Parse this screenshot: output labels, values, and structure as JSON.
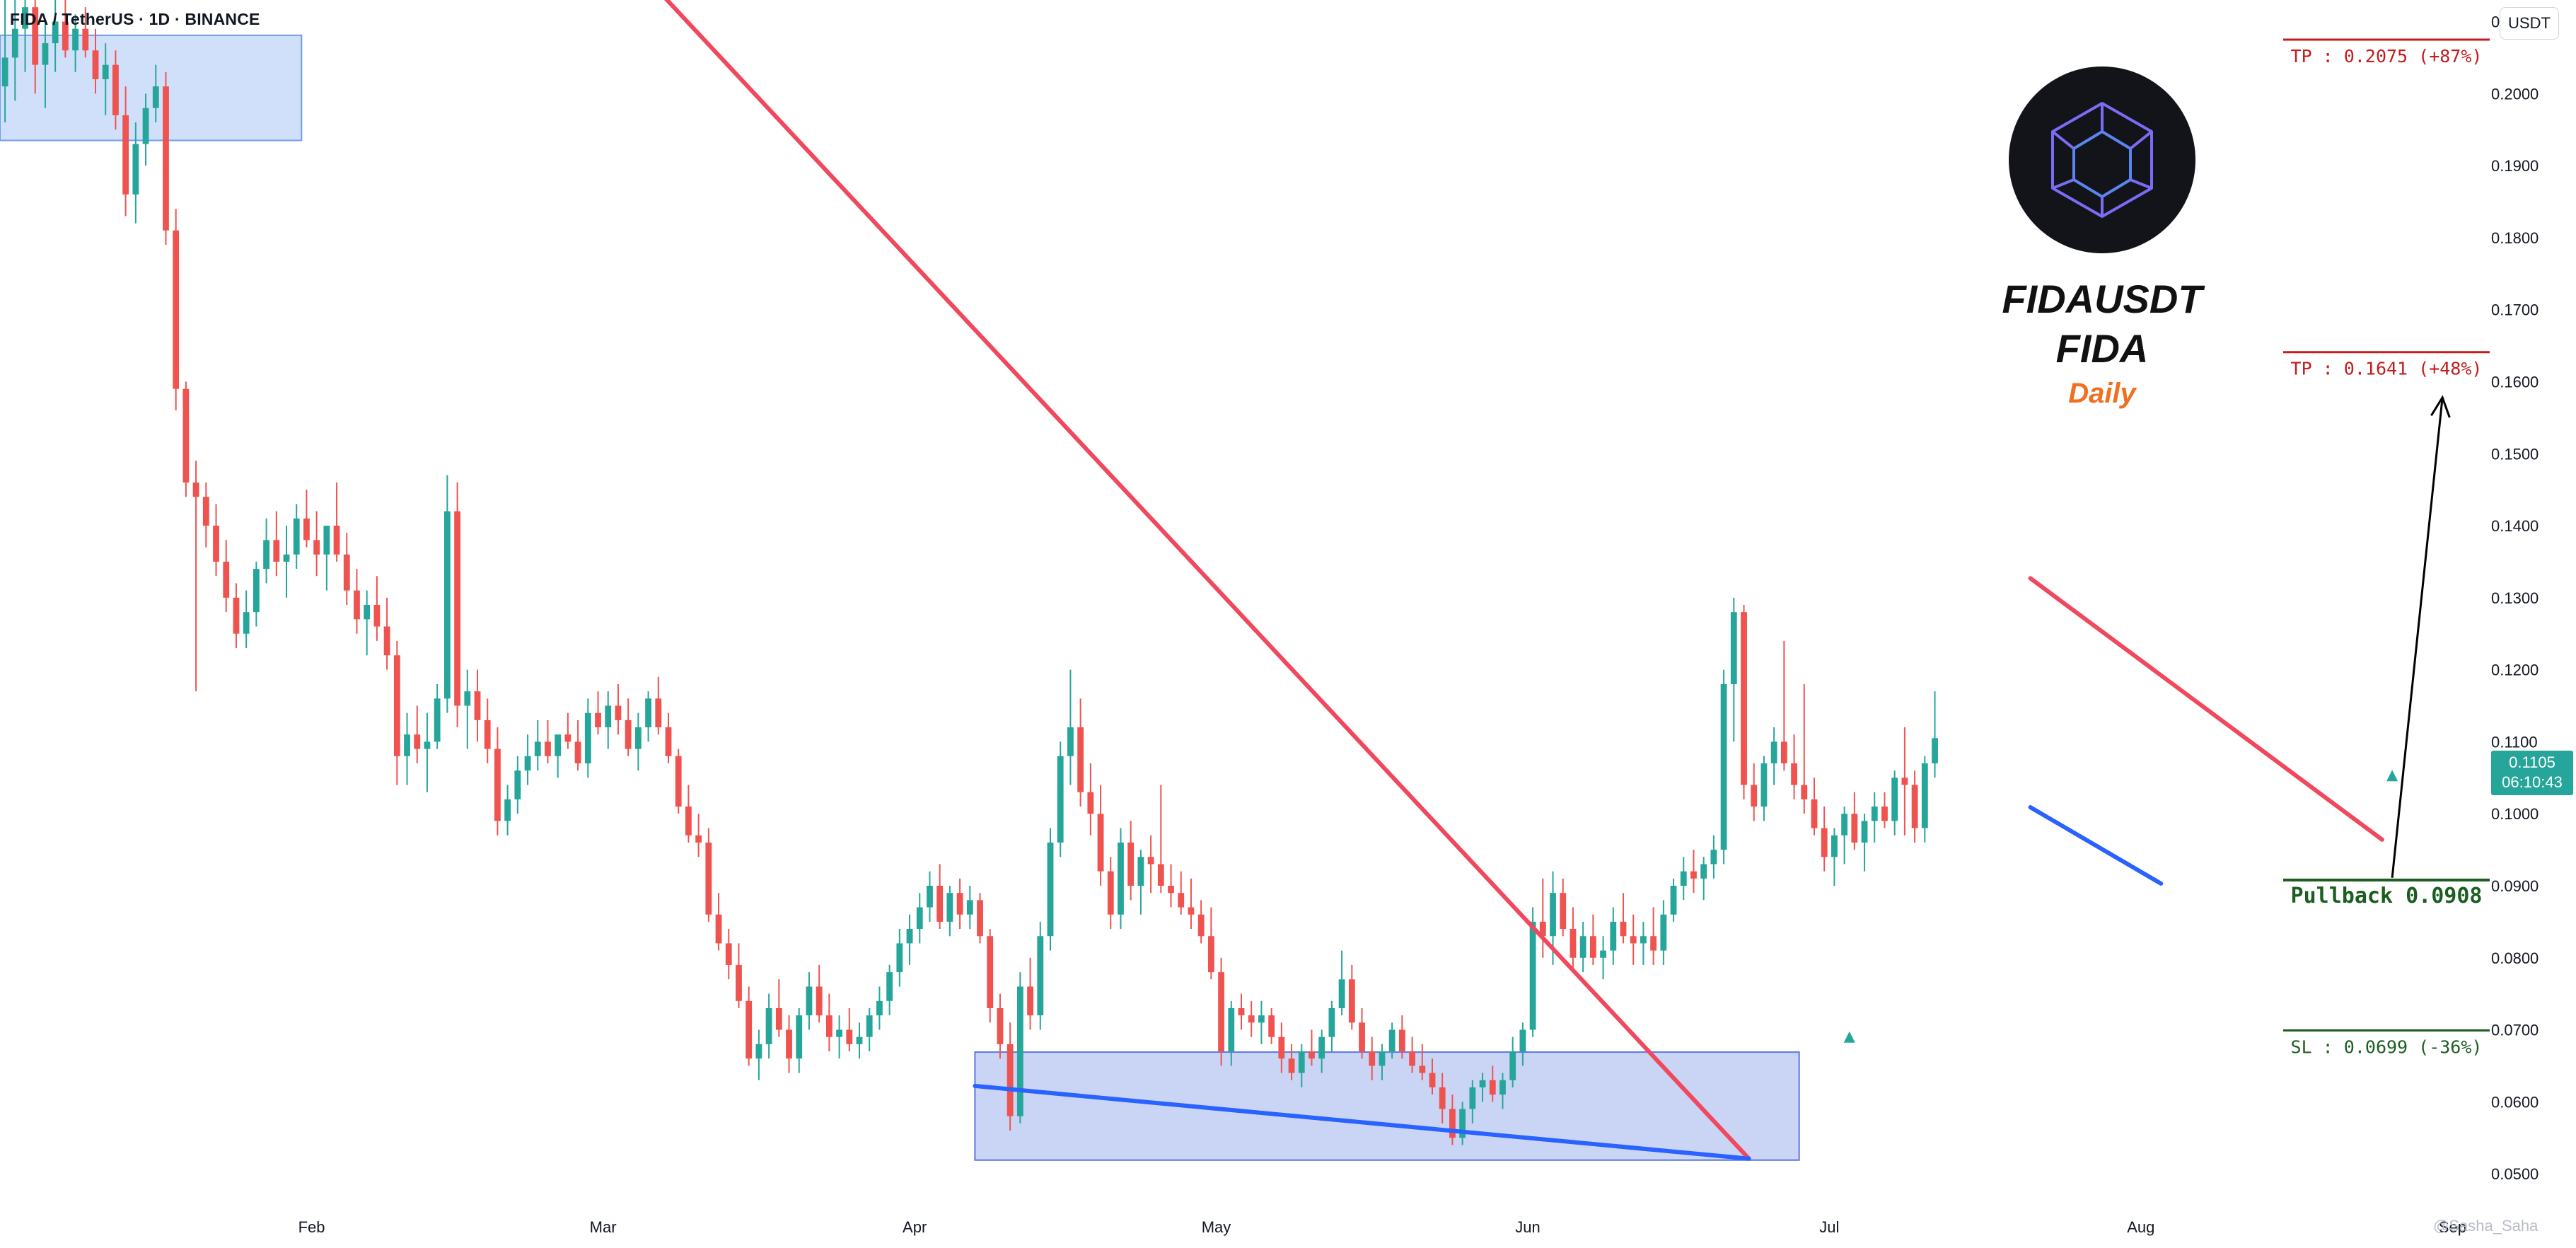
{
  "header": {
    "symbol_label": "FIDA / TetherUS · 1D · BINANCE",
    "currency": "USDT"
  },
  "overlay": {
    "title_lines": [
      "FIDAUSDT",
      "FIDA"
    ],
    "timeframe": "Daily",
    "timeframe_color": "#f07020",
    "logo_icon": "fida-cube-icon"
  },
  "price_tag": {
    "price": "0.1105",
    "countdown": "06:10:43"
  },
  "watermark": "@Sasha_Saha",
  "chart_data": {
    "type": "candlestick",
    "xlim": [
      "2024-01-01",
      "2024-09-04"
    ],
    "ylim": [
      0.045,
      0.213
    ],
    "x_ticks": [
      {
        "label": "Feb",
        "date": "2024-02-01"
      },
      {
        "label": "Mar",
        "date": "2024-03-01"
      },
      {
        "label": "Apr",
        "date": "2024-04-01"
      },
      {
        "label": "May",
        "date": "2024-05-01"
      },
      {
        "label": "Jun",
        "date": "2024-06-01"
      },
      {
        "label": "Jul",
        "date": "2024-07-01"
      },
      {
        "label": "Aug",
        "date": "2024-08-01"
      },
      {
        "label": "Sep",
        "date": "2024-09-01"
      }
    ],
    "y_ticks": [
      "0.0500",
      "0.0600",
      "0.0700",
      "0.0800",
      "0.0900",
      "0.1000",
      "0.1100",
      "0.1200",
      "0.1300",
      "0.1400",
      "0.1500",
      "0.1600",
      "0.1700",
      "0.1800",
      "0.1900",
      "0.2000",
      "0.2100"
    ],
    "up_color": "#26a69a",
    "down_color": "#ef5350",
    "candles_ohlc": [
      [
        0.201,
        0.213,
        0.196,
        0.205
      ],
      [
        0.205,
        0.214,
        0.199,
        0.209
      ],
      [
        0.209,
        0.216,
        0.203,
        0.212
      ],
      [
        0.212,
        0.215,
        0.2,
        0.204
      ],
      [
        0.204,
        0.21,
        0.198,
        0.207
      ],
      [
        0.207,
        0.213,
        0.203,
        0.21
      ],
      [
        0.21,
        0.214,
        0.205,
        0.206
      ],
      [
        0.206,
        0.211,
        0.203,
        0.209
      ],
      [
        0.209,
        0.212,
        0.205,
        0.206
      ],
      [
        0.206,
        0.209,
        0.2,
        0.202
      ],
      [
        0.202,
        0.207,
        0.197,
        0.204
      ],
      [
        0.204,
        0.206,
        0.195,
        0.197
      ],
      [
        0.197,
        0.201,
        0.183,
        0.186
      ],
      [
        0.186,
        0.196,
        0.182,
        0.193
      ],
      [
        0.193,
        0.2,
        0.19,
        0.198
      ],
      [
        0.198,
        0.204,
        0.196,
        0.201
      ],
      [
        0.201,
        0.203,
        0.179,
        0.181
      ],
      [
        0.181,
        0.184,
        0.156,
        0.159
      ],
      [
        0.159,
        0.16,
        0.144,
        0.146
      ],
      [
        0.146,
        0.149,
        0.117,
        0.144
      ],
      [
        0.144,
        0.146,
        0.137,
        0.14
      ],
      [
        0.14,
        0.143,
        0.133,
        0.135
      ],
      [
        0.135,
        0.138,
        0.128,
        0.13
      ],
      [
        0.13,
        0.132,
        0.123,
        0.125
      ],
      [
        0.125,
        0.131,
        0.123,
        0.128
      ],
      [
        0.128,
        0.135,
        0.126,
        0.134
      ],
      [
        0.134,
        0.141,
        0.132,
        0.138
      ],
      [
        0.138,
        0.142,
        0.133,
        0.135
      ],
      [
        0.135,
        0.14,
        0.13,
        0.136
      ],
      [
        0.136,
        0.143,
        0.134,
        0.141
      ],
      [
        0.141,
        0.145,
        0.137,
        0.138
      ],
      [
        0.138,
        0.142,
        0.133,
        0.136
      ],
      [
        0.136,
        0.14,
        0.131,
        0.14
      ],
      [
        0.14,
        0.146,
        0.135,
        0.136
      ],
      [
        0.136,
        0.139,
        0.129,
        0.131
      ],
      [
        0.131,
        0.134,
        0.125,
        0.127
      ],
      [
        0.127,
        0.131,
        0.122,
        0.129
      ],
      [
        0.129,
        0.133,
        0.124,
        0.126
      ],
      [
        0.126,
        0.13,
        0.12,
        0.122
      ],
      [
        0.122,
        0.124,
        0.104,
        0.108
      ],
      [
        0.108,
        0.114,
        0.104,
        0.111
      ],
      [
        0.111,
        0.115,
        0.107,
        0.109
      ],
      [
        0.109,
        0.114,
        0.103,
        0.11
      ],
      [
        0.11,
        0.118,
        0.109,
        0.116
      ],
      [
        0.116,
        0.147,
        0.114,
        0.142
      ],
      [
        0.142,
        0.146,
        0.112,
        0.115
      ],
      [
        0.115,
        0.12,
        0.109,
        0.117
      ],
      [
        0.117,
        0.12,
        0.11,
        0.113
      ],
      [
        0.113,
        0.116,
        0.107,
        0.109
      ],
      [
        0.109,
        0.112,
        0.097,
        0.099
      ],
      [
        0.099,
        0.104,
        0.097,
        0.102
      ],
      [
        0.102,
        0.108,
        0.1,
        0.106
      ],
      [
        0.106,
        0.111,
        0.104,
        0.108
      ],
      [
        0.108,
        0.113,
        0.106,
        0.11
      ],
      [
        0.11,
        0.113,
        0.107,
        0.108
      ],
      [
        0.108,
        0.111,
        0.105,
        0.111
      ],
      [
        0.111,
        0.114,
        0.109,
        0.11
      ],
      [
        0.11,
        0.113,
        0.106,
        0.107
      ],
      [
        0.107,
        0.116,
        0.105,
        0.114
      ],
      [
        0.114,
        0.117,
        0.111,
        0.112
      ],
      [
        0.112,
        0.117,
        0.109,
        0.115
      ],
      [
        0.115,
        0.118,
        0.111,
        0.113
      ],
      [
        0.113,
        0.116,
        0.108,
        0.109
      ],
      [
        0.109,
        0.114,
        0.106,
        0.112
      ],
      [
        0.112,
        0.117,
        0.11,
        0.116
      ],
      [
        0.116,
        0.119,
        0.111,
        0.112
      ],
      [
        0.112,
        0.114,
        0.107,
        0.108
      ],
      [
        0.108,
        0.109,
        0.1,
        0.101
      ],
      [
        0.101,
        0.104,
        0.096,
        0.097
      ],
      [
        0.097,
        0.1,
        0.094,
        0.096
      ],
      [
        0.096,
        0.098,
        0.085,
        0.086
      ],
      [
        0.086,
        0.089,
        0.081,
        0.082
      ],
      [
        0.082,
        0.084,
        0.077,
        0.079
      ],
      [
        0.079,
        0.082,
        0.073,
        0.074
      ],
      [
        0.074,
        0.076,
        0.065,
        0.066
      ],
      [
        0.066,
        0.07,
        0.063,
        0.068
      ],
      [
        0.068,
        0.075,
        0.066,
        0.073
      ],
      [
        0.073,
        0.077,
        0.069,
        0.07
      ],
      [
        0.07,
        0.072,
        0.064,
        0.066
      ],
      [
        0.066,
        0.073,
        0.064,
        0.072
      ],
      [
        0.072,
        0.078,
        0.07,
        0.076
      ],
      [
        0.076,
        0.079,
        0.071,
        0.072
      ],
      [
        0.072,
        0.075,
        0.067,
        0.069
      ],
      [
        0.069,
        0.072,
        0.066,
        0.07
      ],
      [
        0.07,
        0.073,
        0.067,
        0.068
      ],
      [
        0.068,
        0.071,
        0.066,
        0.069
      ],
      [
        0.069,
        0.073,
        0.067,
        0.072
      ],
      [
        0.072,
        0.076,
        0.07,
        0.074
      ],
      [
        0.074,
        0.079,
        0.072,
        0.078
      ],
      [
        0.078,
        0.084,
        0.076,
        0.082
      ],
      [
        0.082,
        0.086,
        0.079,
        0.084
      ],
      [
        0.084,
        0.089,
        0.082,
        0.087
      ],
      [
        0.087,
        0.092,
        0.085,
        0.09
      ],
      [
        0.09,
        0.093,
        0.084,
        0.085
      ],
      [
        0.085,
        0.09,
        0.083,
        0.089
      ],
      [
        0.089,
        0.091,
        0.084,
        0.086
      ],
      [
        0.086,
        0.09,
        0.084,
        0.088
      ],
      [
        0.088,
        0.089,
        0.082,
        0.083
      ],
      [
        0.083,
        0.084,
        0.071,
        0.073
      ],
      [
        0.073,
        0.075,
        0.066,
        0.068
      ],
      [
        0.068,
        0.071,
        0.056,
        0.058
      ],
      [
        0.058,
        0.078,
        0.057,
        0.076
      ],
      [
        0.076,
        0.08,
        0.07,
        0.072
      ],
      [
        0.072,
        0.085,
        0.07,
        0.083
      ],
      [
        0.083,
        0.098,
        0.081,
        0.096
      ],
      [
        0.096,
        0.11,
        0.094,
        0.108
      ],
      [
        0.108,
        0.12,
        0.104,
        0.112
      ],
      [
        0.112,
        0.116,
        0.101,
        0.103
      ],
      [
        0.103,
        0.107,
        0.097,
        0.1
      ],
      [
        0.1,
        0.104,
        0.09,
        0.092
      ],
      [
        0.092,
        0.094,
        0.084,
        0.086
      ],
      [
        0.086,
        0.098,
        0.084,
        0.096
      ],
      [
        0.096,
        0.099,
        0.088,
        0.09
      ],
      [
        0.09,
        0.095,
        0.086,
        0.094
      ],
      [
        0.094,
        0.097,
        0.089,
        0.093
      ],
      [
        0.093,
        0.104,
        0.089,
        0.09
      ],
      [
        0.09,
        0.093,
        0.087,
        0.089
      ],
      [
        0.089,
        0.092,
        0.086,
        0.087
      ],
      [
        0.087,
        0.091,
        0.084,
        0.086
      ],
      [
        0.086,
        0.088,
        0.082,
        0.083
      ],
      [
        0.083,
        0.087,
        0.077,
        0.078
      ],
      [
        0.078,
        0.08,
        0.065,
        0.067
      ],
      [
        0.067,
        0.074,
        0.065,
        0.073
      ],
      [
        0.073,
        0.075,
        0.07,
        0.072
      ],
      [
        0.072,
        0.074,
        0.069,
        0.071
      ],
      [
        0.071,
        0.074,
        0.068,
        0.072
      ],
      [
        0.072,
        0.073,
        0.068,
        0.069
      ],
      [
        0.069,
        0.071,
        0.064,
        0.066
      ],
      [
        0.066,
        0.068,
        0.063,
        0.064
      ],
      [
        0.064,
        0.068,
        0.062,
        0.067
      ],
      [
        0.067,
        0.07,
        0.065,
        0.066
      ],
      [
        0.066,
        0.07,
        0.064,
        0.069
      ],
      [
        0.069,
        0.074,
        0.067,
        0.073
      ],
      [
        0.073,
        0.081,
        0.072,
        0.077
      ],
      [
        0.077,
        0.079,
        0.07,
        0.071
      ],
      [
        0.071,
        0.073,
        0.066,
        0.067
      ],
      [
        0.067,
        0.069,
        0.063,
        0.065
      ],
      [
        0.065,
        0.068,
        0.063,
        0.067
      ],
      [
        0.067,
        0.071,
        0.066,
        0.07
      ],
      [
        0.07,
        0.072,
        0.066,
        0.067
      ],
      [
        0.067,
        0.069,
        0.064,
        0.065
      ],
      [
        0.065,
        0.068,
        0.063,
        0.064
      ],
      [
        0.064,
        0.066,
        0.061,
        0.062
      ],
      [
        0.062,
        0.064,
        0.057,
        0.059
      ],
      [
        0.059,
        0.061,
        0.054,
        0.055
      ],
      [
        0.055,
        0.06,
        0.054,
        0.059
      ],
      [
        0.059,
        0.063,
        0.057,
        0.062
      ],
      [
        0.062,
        0.064,
        0.06,
        0.063
      ],
      [
        0.063,
        0.065,
        0.06,
        0.061
      ],
      [
        0.061,
        0.064,
        0.059,
        0.063
      ],
      [
        0.063,
        0.069,
        0.062,
        0.067
      ],
      [
        0.067,
        0.071,
        0.065,
        0.07
      ],
      [
        0.07,
        0.087,
        0.069,
        0.085
      ],
      [
        0.085,
        0.091,
        0.08,
        0.083
      ],
      [
        0.083,
        0.092,
        0.079,
        0.089
      ],
      [
        0.089,
        0.091,
        0.083,
        0.084
      ],
      [
        0.084,
        0.087,
        0.078,
        0.08
      ],
      [
        0.08,
        0.085,
        0.078,
        0.083
      ],
      [
        0.083,
        0.086,
        0.079,
        0.08
      ],
      [
        0.08,
        0.083,
        0.077,
        0.081
      ],
      [
        0.081,
        0.087,
        0.079,
        0.085
      ],
      [
        0.085,
        0.089,
        0.082,
        0.083
      ],
      [
        0.083,
        0.086,
        0.079,
        0.082
      ],
      [
        0.082,
        0.085,
        0.079,
        0.083
      ],
      [
        0.083,
        0.087,
        0.079,
        0.081
      ],
      [
        0.081,
        0.088,
        0.079,
        0.086
      ],
      [
        0.086,
        0.091,
        0.085,
        0.09
      ],
      [
        0.09,
        0.094,
        0.088,
        0.092
      ],
      [
        0.092,
        0.095,
        0.089,
        0.091
      ],
      [
        0.091,
        0.094,
        0.088,
        0.093
      ],
      [
        0.093,
        0.097,
        0.091,
        0.095
      ],
      [
        0.095,
        0.12,
        0.093,
        0.118
      ],
      [
        0.118,
        0.13,
        0.11,
        0.128
      ],
      [
        0.128,
        0.129,
        0.102,
        0.104
      ],
      [
        0.104,
        0.107,
        0.099,
        0.101
      ],
      [
        0.101,
        0.108,
        0.099,
        0.107
      ],
      [
        0.107,
        0.112,
        0.104,
        0.11
      ],
      [
        0.11,
        0.124,
        0.106,
        0.107
      ],
      [
        0.107,
        0.111,
        0.102,
        0.104
      ],
      [
        0.104,
        0.118,
        0.1,
        0.102
      ],
      [
        0.102,
        0.105,
        0.097,
        0.098
      ],
      [
        0.098,
        0.101,
        0.092,
        0.094
      ],
      [
        0.094,
        0.098,
        0.09,
        0.097
      ],
      [
        0.097,
        0.101,
        0.093,
        0.1
      ],
      [
        0.1,
        0.103,
        0.095,
        0.096
      ],
      [
        0.096,
        0.1,
        0.092,
        0.099
      ],
      [
        0.099,
        0.103,
        0.096,
        0.101
      ],
      [
        0.101,
        0.103,
        0.098,
        0.099
      ],
      [
        0.099,
        0.106,
        0.097,
        0.105
      ],
      [
        0.105,
        0.112,
        0.097,
        0.104
      ],
      [
        0.104,
        0.106,
        0.096,
        0.098
      ],
      [
        0.098,
        0.108,
        0.096,
        0.107
      ],
      [
        0.107,
        0.117,
        0.105,
        0.1105
      ]
    ],
    "zones": [
      {
        "name": "top-left demand zone",
        "from": "2024-01-01",
        "to": "2024-01-31",
        "low": 0.1935,
        "high": 0.2081,
        "color": "#6f9ef0"
      },
      {
        "name": "accumulation zone",
        "from": "2024-04-07",
        "to": "2024-06-28",
        "low": 0.0519,
        "high": 0.0669,
        "color": "#5b78e0"
      }
    ],
    "trendlines": [
      {
        "name": "main downtrend line",
        "color": "#f0485c",
        "from": {
          "date": "2024-02-27",
          "price": 0.227
        },
        "to": {
          "date": "2024-06-23",
          "price": 0.0521
        }
      },
      {
        "name": "lower support line",
        "color": "#2962ff",
        "from": {
          "date": "2024-04-07",
          "price": 0.0622
        },
        "to": {
          "date": "2024-06-23",
          "price": 0.0521
        }
      },
      {
        "name": "flag upper line",
        "color": "#f0485c",
        "from": {
          "date": "2024-07-21",
          "price": 0.1327
        },
        "to": {
          "date": "2024-08-25",
          "price": 0.0964
        }
      },
      {
        "name": "flag lower line",
        "color": "#2962ff",
        "from": {
          "date": "2024-07-21",
          "price": 0.1009
        },
        "to": {
          "date": "2024-08-03",
          "price": 0.0903
        }
      }
    ],
    "projection_arrow": {
      "color": "#000000",
      "from": {
        "date": "2024-08-26",
        "price": 0.0911
      },
      "to": {
        "date": "2024-08-31",
        "price": 0.1578
      }
    },
    "levels": [
      {
        "name": "tp2",
        "label": "TP : 0.2075 (+87%)",
        "price": 0.2075,
        "color": "#c21c1c"
      },
      {
        "name": "tp1",
        "label": "TP : 0.1641 (+48%)",
        "price": 0.1641,
        "color": "#c21c1c"
      },
      {
        "name": "pullback",
        "label": "Pullback 0.0908",
        "price": 0.0908,
        "color": "#1b5e20"
      },
      {
        "name": "sl",
        "label": "SL : 0.0699 (-36%)",
        "price": 0.0699,
        "color": "#1b5e20"
      }
    ],
    "markers": [
      {
        "name": "up-marker-jul",
        "date": "2024-07-03",
        "price": 0.0688,
        "color": "#26a69a"
      },
      {
        "name": "up-marker-aug",
        "date": "2024-08-26",
        "price": 0.1051,
        "color": "#26a69a"
      }
    ]
  }
}
